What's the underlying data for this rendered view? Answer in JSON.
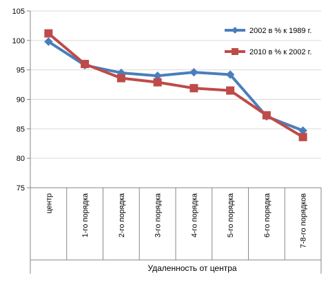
{
  "chart_data": {
    "type": "line",
    "categories": [
      "центр",
      "1-го порядка",
      "2-го порядка",
      "3-го порядка",
      "4-го порядка",
      "5-го порядка",
      "6-го порядка",
      "7-8-го порядков"
    ],
    "series": [
      {
        "name": "2002 в % к 1989 г.",
        "color": "#4A7EBB",
        "marker": "diamond",
        "values": [
          99.8,
          95.8,
          94.5,
          94.0,
          94.6,
          94.2,
          87.1,
          84.7
        ]
      },
      {
        "name": "2010 в % к 2002 г.",
        "color": "#BE4B48",
        "marker": "square",
        "values": [
          101.2,
          96.0,
          93.6,
          92.9,
          91.9,
          91.5,
          87.3,
          83.6
        ]
      }
    ],
    "xlabel": "Удаленность от центра",
    "ylabel": "",
    "ylim": [
      75,
      105
    ],
    "yticks": [
      75,
      80,
      85,
      90,
      95,
      100,
      105
    ],
    "grid": true,
    "legend_position": "top-right"
  }
}
